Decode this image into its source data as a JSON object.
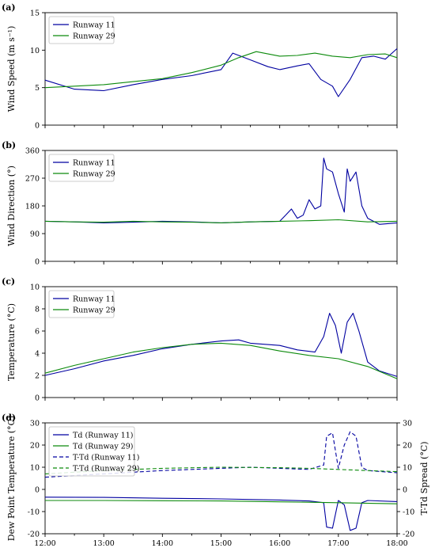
{
  "colors": {
    "runway11": "#0000a0",
    "runway29": "#0c8a0c"
  },
  "x_ticks": [
    "12:00",
    "13:00",
    "14:00",
    "15:00",
    "16:00",
    "17:00",
    "18:00"
  ],
  "chart_data": [
    {
      "type": "line",
      "panel_label": "(a)",
      "ylabel": "Wind Speed (m s⁻¹)",
      "x_range_hours": [
        12,
        18
      ],
      "ylim": [
        0,
        15
      ],
      "yticks": [
        0,
        5,
        10,
        15
      ],
      "legend_position": "top-left",
      "series": [
        {
          "name": "Runway 11",
          "color": "#0000a0",
          "style": "solid",
          "x": [
            12.0,
            12.5,
            13.0,
            13.5,
            14.0,
            14.5,
            15.0,
            15.2,
            15.5,
            15.8,
            16.0,
            16.3,
            16.5,
            16.7,
            16.9,
            17.0,
            17.2,
            17.4,
            17.6,
            17.8,
            18.0
          ],
          "y": [
            6,
            4.8,
            4.6,
            5.4,
            6.1,
            6.6,
            7.4,
            9.6,
            8.7,
            7.8,
            7.4,
            7.9,
            8.2,
            6.1,
            5.2,
            3.8,
            6.1,
            9.0,
            9.2,
            8.8,
            10.2
          ]
        },
        {
          "name": "Runway 29",
          "color": "#0c8a0c",
          "style": "solid",
          "x": [
            12.0,
            12.5,
            13.0,
            13.5,
            14.0,
            14.5,
            15.0,
            15.3,
            15.6,
            16.0,
            16.3,
            16.6,
            16.9,
            17.2,
            17.5,
            17.8,
            18.0
          ],
          "y": [
            5,
            5.2,
            5.4,
            5.8,
            6.2,
            7.0,
            8.0,
            9.0,
            9.8,
            9.2,
            9.3,
            9.6,
            9.2,
            9.0,
            9.4,
            9.5,
            9.0
          ]
        }
      ]
    },
    {
      "type": "line",
      "panel_label": "(b)",
      "ylabel": "Wind Direction (°)",
      "x_range_hours": [
        12,
        18
      ],
      "ylim": [
        0,
        360
      ],
      "yticks": [
        0,
        90,
        180,
        270,
        360
      ],
      "legend_position": "top-left",
      "series": [
        {
          "name": "Runway 11",
          "color": "#0000a0",
          "style": "solid",
          "x": [
            12.0,
            12.5,
            13.0,
            13.5,
            14.0,
            14.5,
            15.0,
            15.5,
            16.0,
            16.1,
            16.2,
            16.3,
            16.4,
            16.5,
            16.6,
            16.7,
            16.75,
            16.8,
            16.9,
            17.0,
            17.1,
            17.15,
            17.2,
            17.3,
            17.4,
            17.5,
            17.7,
            18.0
          ],
          "y": [
            130,
            128,
            125,
            127,
            130,
            128,
            125,
            128,
            130,
            150,
            170,
            140,
            150,
            200,
            170,
            180,
            335,
            300,
            290,
            220,
            160,
            300,
            260,
            290,
            180,
            140,
            120,
            125
          ]
        },
        {
          "name": "Runway 29",
          "color": "#0c8a0c",
          "style": "solid",
          "x": [
            12.0,
            12.5,
            13.0,
            13.5,
            14.0,
            14.5,
            15.0,
            15.5,
            16.0,
            16.5,
            17.0,
            17.5,
            18.0
          ],
          "y": [
            130,
            128,
            127,
            130,
            128,
            127,
            125,
            128,
            130,
            132,
            135,
            128,
            130
          ]
        }
      ]
    },
    {
      "type": "line",
      "panel_label": "(c)",
      "ylabel": "Temperature (°C)",
      "x_range_hours": [
        12,
        18
      ],
      "ylim": [
        0,
        10
      ],
      "yticks": [
        0,
        2,
        4,
        6,
        8,
        10
      ],
      "legend_position": "top-left",
      "series": [
        {
          "name": "Runway 11",
          "color": "#0000a0",
          "style": "solid",
          "x": [
            12.0,
            12.5,
            13.0,
            13.5,
            14.0,
            14.5,
            15.0,
            15.3,
            15.5,
            16.0,
            16.3,
            16.6,
            16.75,
            16.85,
            16.95,
            17.05,
            17.15,
            17.25,
            17.35,
            17.5,
            17.7,
            18.0
          ],
          "y": [
            2.0,
            2.6,
            3.3,
            3.8,
            4.4,
            4.8,
            5.1,
            5.2,
            4.9,
            4.7,
            4.3,
            4.1,
            5.5,
            7.6,
            6.5,
            4.0,
            6.8,
            7.6,
            6.0,
            3.2,
            2.4,
            1.9
          ]
        },
        {
          "name": "Runway 29",
          "color": "#0c8a0c",
          "style": "solid",
          "x": [
            12.0,
            12.5,
            13.0,
            13.5,
            14.0,
            14.5,
            15.0,
            15.5,
            16.0,
            16.5,
            17.0,
            17.5,
            18.0
          ],
          "y": [
            2.2,
            2.9,
            3.5,
            4.1,
            4.5,
            4.8,
            4.9,
            4.7,
            4.2,
            3.8,
            3.5,
            2.8,
            1.7
          ]
        }
      ]
    },
    {
      "type": "line",
      "panel_label": "(d)",
      "ylabel": "Dew Point Temperature (°C)",
      "ylabel_right": "T-Td Spread (°C)",
      "x_range_hours": [
        12,
        18
      ],
      "ylim": [
        -20,
        30
      ],
      "yticks": [
        -20,
        -10,
        0,
        10,
        20,
        30
      ],
      "legend_position": "top-left",
      "series": [
        {
          "name": "Td (Runway 11)",
          "color": "#0000a0",
          "style": "solid",
          "x": [
            12.0,
            13.0,
            14.0,
            15.0,
            16.0,
            16.5,
            16.75,
            16.8,
            16.9,
            17.0,
            17.1,
            17.2,
            17.3,
            17.4,
            17.5,
            18.0
          ],
          "y": [
            -3.5,
            -3.6,
            -4.0,
            -4.3,
            -4.8,
            -5.2,
            -6.0,
            -17.0,
            -17.5,
            -5.0,
            -7.0,
            -18.5,
            -17.5,
            -6.0,
            -5.0,
            -5.5
          ]
        },
        {
          "name": "Td (Runway 29)",
          "color": "#0c8a0c",
          "style": "solid",
          "x": [
            12.0,
            13.0,
            14.0,
            15.0,
            16.0,
            17.0,
            18.0
          ],
          "y": [
            -5.0,
            -5.0,
            -5.1,
            -5.2,
            -5.6,
            -6.0,
            -6.5
          ]
        },
        {
          "name": "T-Td (Runway 11)",
          "color": "#0000a0",
          "style": "dashed",
          "x": [
            12.0,
            13.0,
            14.0,
            15.0,
            15.5,
            16.0,
            16.5,
            16.75,
            16.8,
            16.9,
            17.0,
            17.1,
            17.2,
            17.3,
            17.4,
            17.5,
            18.0
          ],
          "y": [
            5.5,
            7.0,
            8.5,
            9.5,
            10.0,
            9.5,
            9.0,
            11.0,
            24.0,
            25.5,
            9.5,
            20.0,
            26.0,
            24.0,
            10.0,
            8.5,
            7.5
          ]
        },
        {
          "name": "T-Td (Runway 29)",
          "color": "#0c8a0c",
          "style": "dashed",
          "x": [
            12.0,
            13.0,
            14.0,
            15.0,
            16.0,
            16.5,
            17.0,
            17.5,
            18.0
          ],
          "y": [
            7.0,
            8.5,
            9.5,
            10.0,
            9.8,
            9.5,
            9.0,
            8.5,
            8.0
          ]
        }
      ]
    }
  ]
}
